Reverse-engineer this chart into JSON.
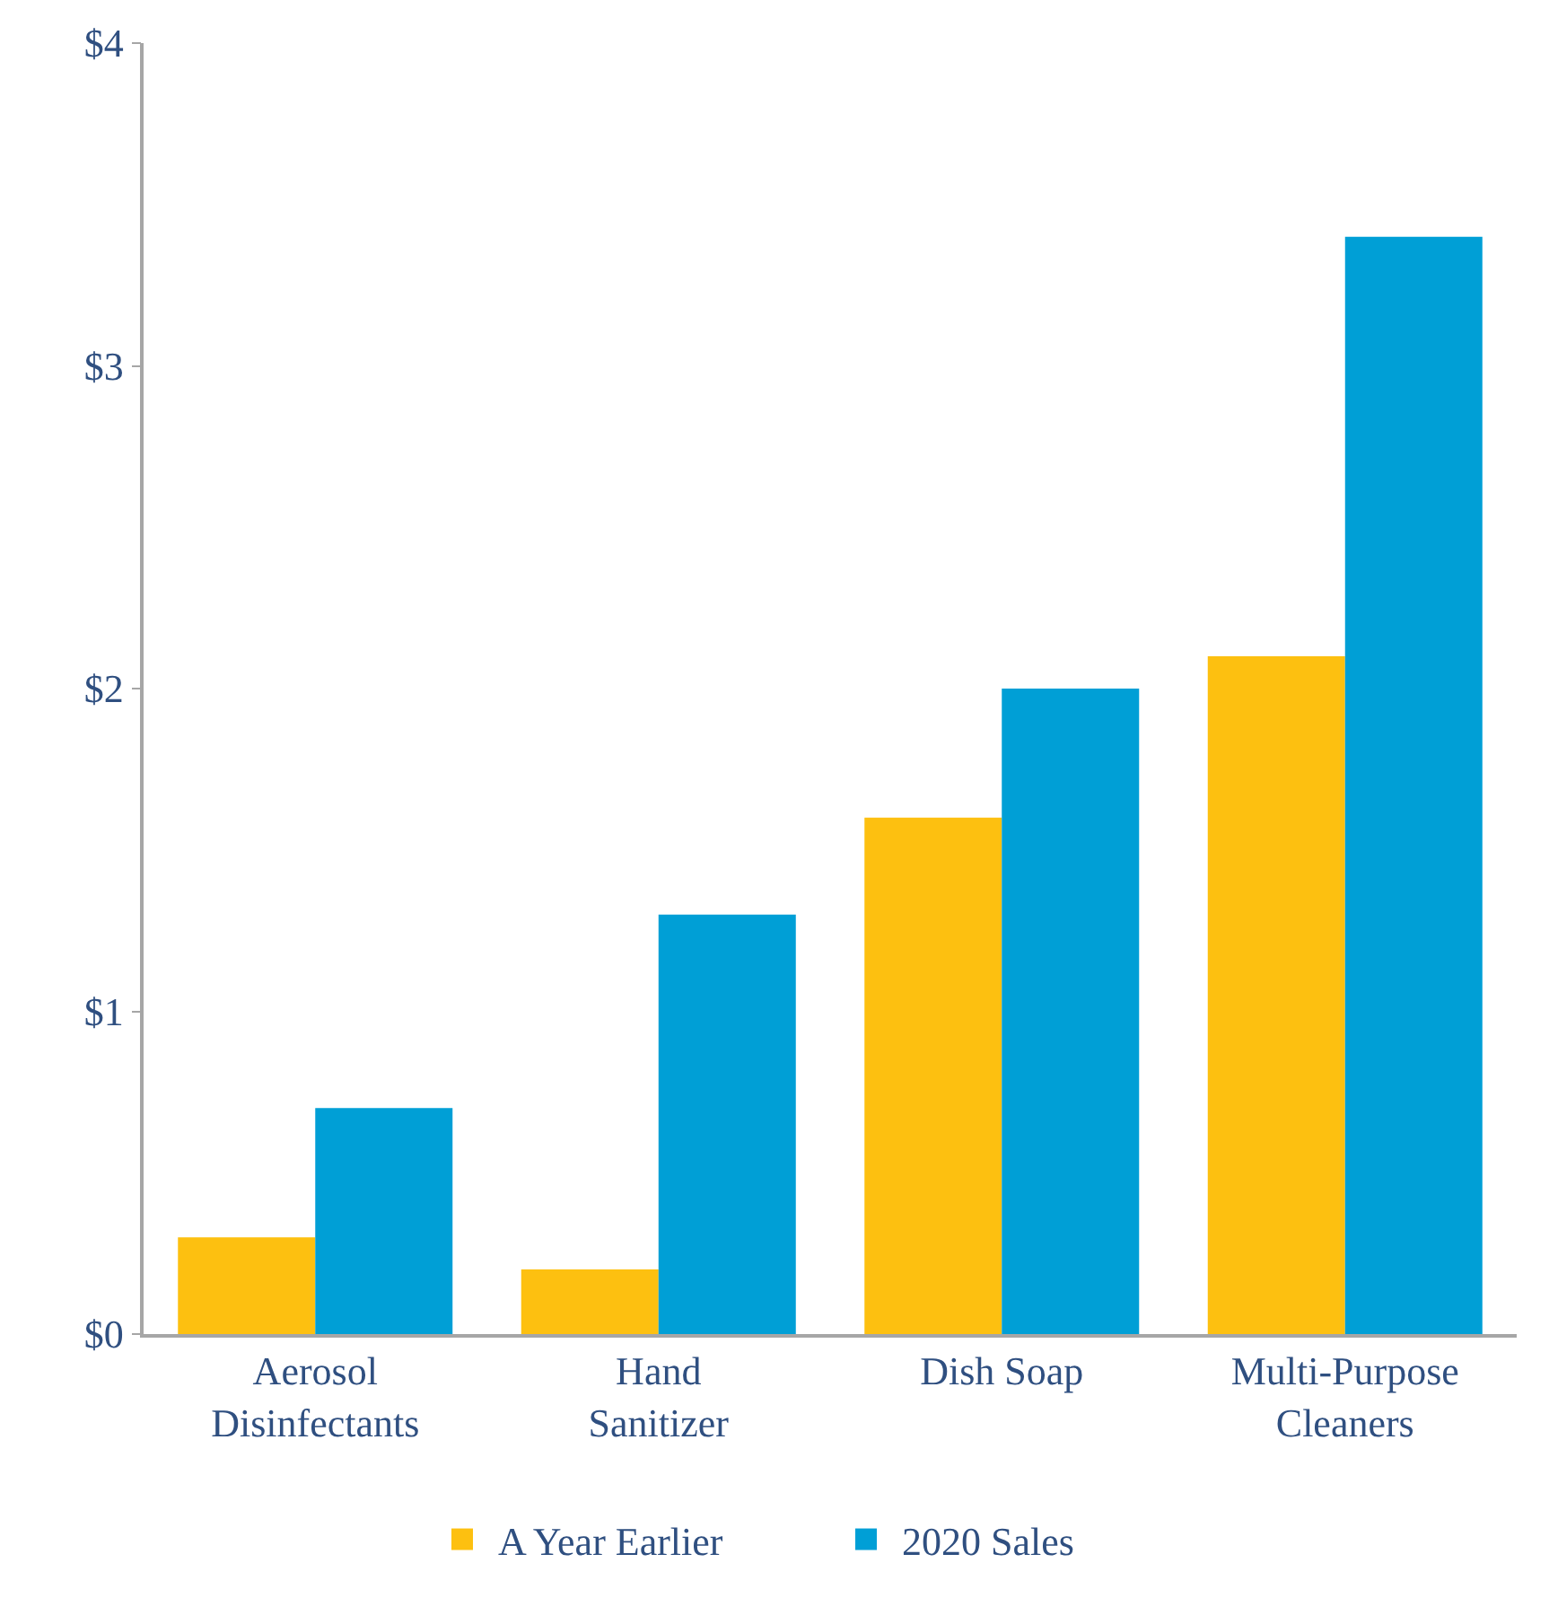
{
  "chart_data": {
    "type": "bar",
    "categories": [
      "Aerosol\nDisinfectants",
      "Hand\nSanitizer",
      "Dish Soap",
      "Multi-Purpose\nCleaners"
    ],
    "series": [
      {
        "name": "A Year Earlier",
        "color": "#fdc010",
        "values": [
          0.3,
          0.2,
          1.6,
          2.1
        ]
      },
      {
        "name": "2020 Sales",
        "color": "#009fd6",
        "values": [
          0.7,
          1.3,
          2.0,
          3.4
        ]
      }
    ],
    "ylim": [
      0,
      4
    ],
    "yticks": [
      {
        "value": 0,
        "label": "$0"
      },
      {
        "value": 1,
        "label": "$1"
      },
      {
        "value": 2,
        "label": "$2"
      },
      {
        "value": 3,
        "label": "$3"
      },
      {
        "value": 4,
        "label": "$4"
      }
    ],
    "legend": "bottom"
  }
}
